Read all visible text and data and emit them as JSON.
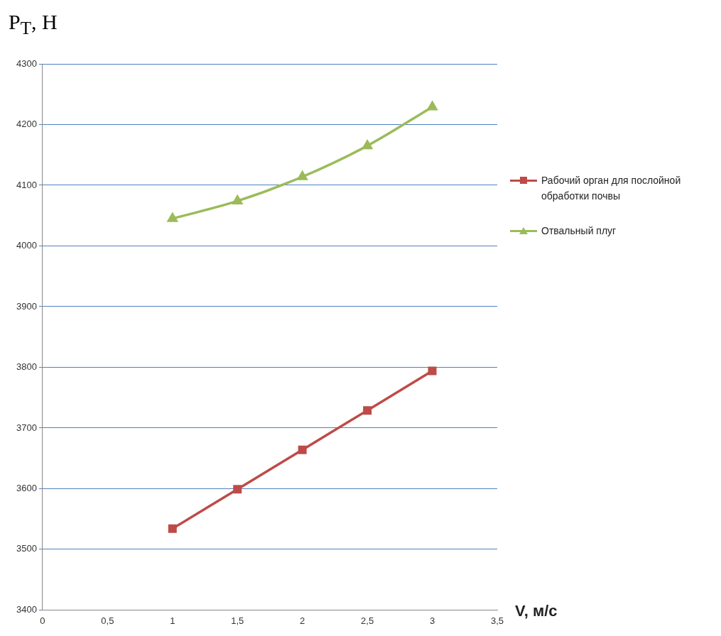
{
  "chart_data": {
    "type": "line",
    "ylabel": "P$_{T}$, Н",
    "xlabel": "V, м/с",
    "xlim": [
      0,
      3.5
    ],
    "xticks": [
      0,
      {
        "value": 0.5,
        "label": "0,5"
      },
      1,
      {
        "value": 1.5,
        "label": "1,5"
      },
      2,
      {
        "value": 2.5,
        "label": "2,5"
      },
      3,
      {
        "value": 3.5,
        "label": "3,5"
      }
    ],
    "ylim": [
      3400,
      4300
    ],
    "yticks": [
      3400,
      3500,
      3600,
      3700,
      3800,
      3900,
      4000,
      4100,
      4200,
      4300
    ],
    "grid": "y",
    "legend": "right",
    "line_style": "solid",
    "series": [
      {
        "name": "Рабочий орган для послойной обработки почвы",
        "color": "#be4b48",
        "marker": "square",
        "x": [
          1,
          1.5,
          2,
          2.5,
          3
        ],
        "values": [
          3534,
          3599,
          3664,
          3729,
          3794
        ]
      },
      {
        "name": "Отвальный плуг",
        "color": "#9bbb59",
        "marker": "triangle",
        "x": [
          1,
          1.5,
          2,
          2.5,
          3
        ],
        "values": [
          4045,
          4074,
          4114,
          4165,
          4229
        ]
      }
    ]
  }
}
